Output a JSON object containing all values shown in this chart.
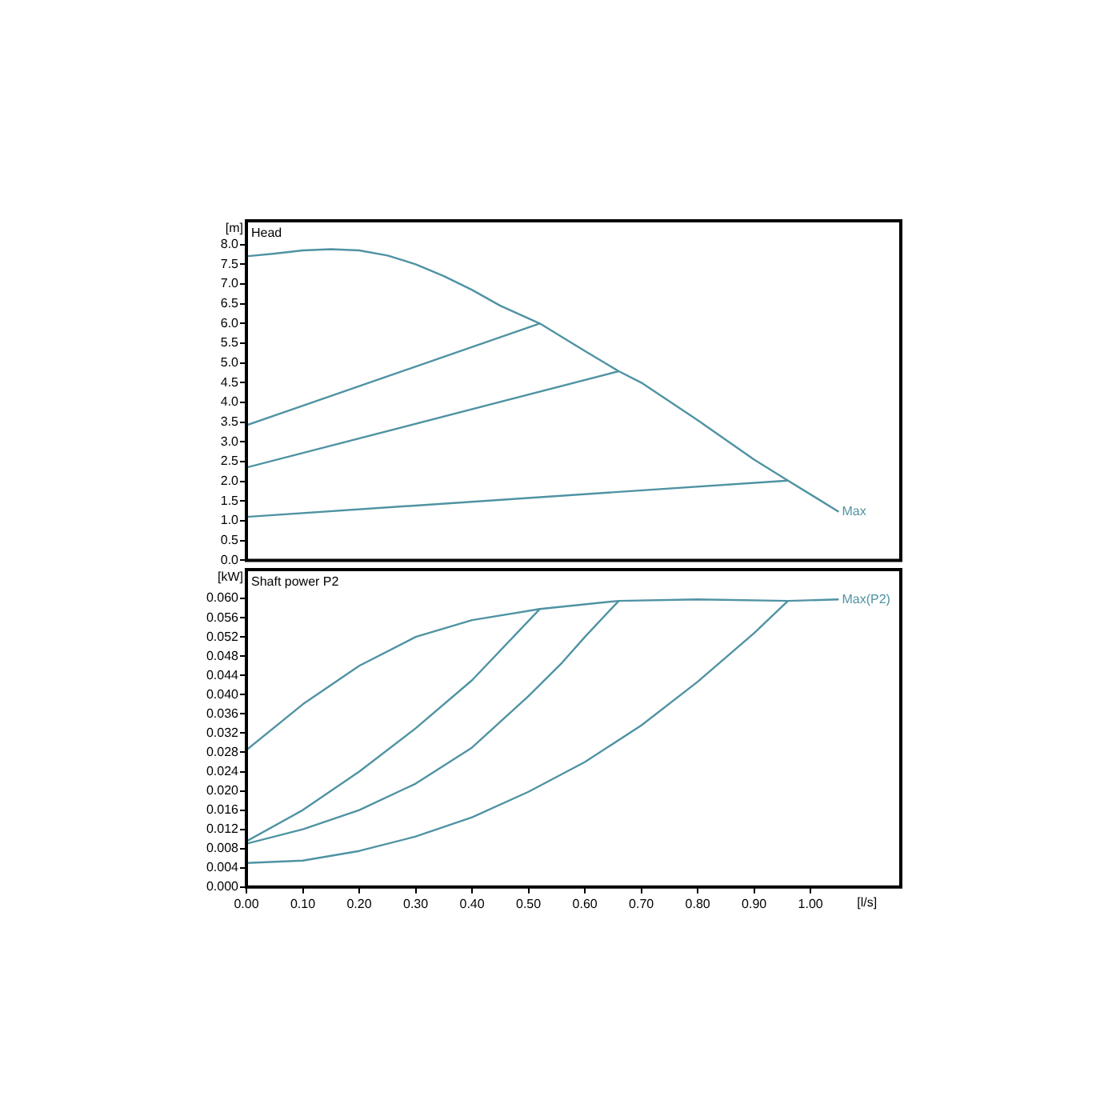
{
  "chart_data": [
    {
      "type": "line",
      "title": "Head",
      "ylabel": "[m]",
      "xlim": [
        0,
        1.16
      ],
      "ylim": [
        0,
        8.6
      ],
      "tick_labels": "y",
      "legend": false,
      "yticks": [
        {
          "value": 0,
          "label": "0.0"
        },
        {
          "value": 0.5,
          "label": "0.5"
        },
        {
          "value": 1,
          "label": "1.0"
        },
        {
          "value": 1.5,
          "label": "1.5"
        },
        {
          "value": 2,
          "label": "2.0"
        },
        {
          "value": 2.5,
          "label": "2.5"
        },
        {
          "value": 3,
          "label": "3.0"
        },
        {
          "value": 3.5,
          "label": "3.5"
        },
        {
          "value": 4,
          "label": "4.0"
        },
        {
          "value": 4.5,
          "label": "4.5"
        },
        {
          "value": 5,
          "label": "5.0"
        },
        {
          "value": 5.5,
          "label": "5.5"
        },
        {
          "value": 6,
          "label": "6.0"
        },
        {
          "value": 6.5,
          "label": "6.5"
        },
        {
          "value": 7,
          "label": "7.0"
        },
        {
          "value": 7.5,
          "label": "7.5"
        },
        {
          "value": 8,
          "label": "8.0"
        }
      ],
      "series": [
        {
          "name": "Max",
          "color": "#4f93a3",
          "x": [
            0,
            0.05,
            0.1,
            0.15,
            0.2,
            0.25,
            0.3,
            0.35,
            0.4,
            0.45,
            0.52,
            0.6,
            0.66,
            0.7,
            0.8,
            0.9,
            0.96,
            1.05
          ],
          "values": [
            7.7,
            7.77,
            7.85,
            7.88,
            7.85,
            7.72,
            7.5,
            7.2,
            6.85,
            6.45,
            6.0,
            5.3,
            4.79,
            4.5,
            3.55,
            2.55,
            2.02,
            1.23
          ]
        },
        {
          "color": "#4f93a3",
          "x": [
            0,
            0.52
          ],
          "values": [
            3.42,
            6.0
          ]
        },
        {
          "color": "#4f93a3",
          "x": [
            0,
            0.66
          ],
          "values": [
            2.35,
            4.79
          ]
        },
        {
          "color": "#4f93a3",
          "x": [
            0,
            0.96
          ],
          "values": [
            1.1,
            2.02
          ]
        }
      ]
    },
    {
      "type": "line",
      "title": "Shaft power P2",
      "ylabel": "[kW]",
      "xlabel": "[l/s]",
      "xlim": [
        0,
        1.16
      ],
      "ylim": [
        0,
        0.066
      ],
      "legend": false,
      "xticks": [
        {
          "value": 0,
          "label": "0.00"
        },
        {
          "value": 0.1,
          "label": "0.10"
        },
        {
          "value": 0.2,
          "label": "0.20"
        },
        {
          "value": 0.3,
          "label": "0.30"
        },
        {
          "value": 0.4,
          "label": "0.40"
        },
        {
          "value": 0.5,
          "label": "0.50"
        },
        {
          "value": 0.6,
          "label": "0.60"
        },
        {
          "value": 0.7,
          "label": "0.70"
        },
        {
          "value": 0.8,
          "label": "0.80"
        },
        {
          "value": 0.9,
          "label": "0.90"
        },
        {
          "value": 1,
          "label": "1.00"
        }
      ],
      "yticks": [
        {
          "value": 0,
          "label": "0.000"
        },
        {
          "value": 0.004,
          "label": "0.004"
        },
        {
          "value": 0.008,
          "label": "0.008"
        },
        {
          "value": 0.012,
          "label": "0.012"
        },
        {
          "value": 0.016,
          "label": "0.016"
        },
        {
          "value": 0.02,
          "label": "0.020"
        },
        {
          "value": 0.024,
          "label": "0.024"
        },
        {
          "value": 0.028,
          "label": "0.028"
        },
        {
          "value": 0.032,
          "label": "0.032"
        },
        {
          "value": 0.036,
          "label": "0.036"
        },
        {
          "value": 0.04,
          "label": "0.040"
        },
        {
          "value": 0.044,
          "label": "0.044"
        },
        {
          "value": 0.048,
          "label": "0.048"
        },
        {
          "value": 0.052,
          "label": "0.052"
        },
        {
          "value": 0.056,
          "label": "0.056"
        },
        {
          "value": 0.06,
          "label": "0.060"
        }
      ],
      "series": [
        {
          "name": "Max(P2)",
          "color": "#4f93a3",
          "x": [
            0,
            0.1,
            0.2,
            0.3,
            0.4,
            0.52,
            0.66,
            0.8,
            0.96,
            1.05
          ],
          "values": [
            0.0285,
            0.038,
            0.046,
            0.052,
            0.0555,
            0.0578,
            0.0595,
            0.0598,
            0.0595,
            0.0598
          ]
        },
        {
          "color": "#4f93a3",
          "x": [
            0,
            0.1,
            0.2,
            0.3,
            0.4,
            0.52
          ],
          "values": [
            0.0095,
            0.016,
            0.024,
            0.033,
            0.043,
            0.0578
          ]
        },
        {
          "color": "#4f93a3",
          "x": [
            0,
            0.1,
            0.2,
            0.3,
            0.4,
            0.5,
            0.56,
            0.6,
            0.66
          ],
          "values": [
            0.009,
            0.012,
            0.016,
            0.0215,
            0.029,
            0.0397,
            0.0467,
            0.052,
            0.0595
          ]
        },
        {
          "color": "#4f93a3",
          "x": [
            0,
            0.1,
            0.2,
            0.3,
            0.4,
            0.5,
            0.6,
            0.7,
            0.8,
            0.9,
            0.96
          ],
          "values": [
            0.005,
            0.0055,
            0.0075,
            0.0105,
            0.0145,
            0.0198,
            0.026,
            0.0336,
            0.0427,
            0.0528,
            0.0595
          ]
        }
      ]
    }
  ]
}
